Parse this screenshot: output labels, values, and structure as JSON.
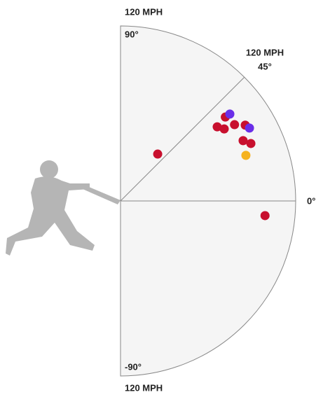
{
  "chart_data": {
    "type": "polar-scatter",
    "rlim": [
      0,
      120
    ],
    "angle_ticks": [
      {
        "value": 90,
        "label": "90°"
      },
      {
        "value": 45,
        "label": "45°"
      },
      {
        "value": 0,
        "label": "0°"
      },
      {
        "value": -90,
        "label": "-90°"
      }
    ],
    "speed_labels": [
      {
        "value": 120,
        "label": "120 MPH"
      },
      {
        "value": 120,
        "label": "120 MPH"
      },
      {
        "value": 120,
        "label": "120 MPH"
      }
    ],
    "points": [
      {
        "angle": 51.6,
        "speed": 41,
        "color": "#c8102e"
      },
      {
        "angle": 38.7,
        "speed": 92,
        "color": "#c8102e"
      },
      {
        "angle": 37.5,
        "speed": 83.5,
        "color": "#c8102e"
      },
      {
        "angle": 34.8,
        "speed": 86.5,
        "color": "#c8102e"
      },
      {
        "angle": 33.8,
        "speed": 94,
        "color": "#c8102e"
      },
      {
        "angle": 31.3,
        "speed": 100,
        "color": "#c8102e"
      },
      {
        "angle": 26.2,
        "speed": 93.6,
        "color": "#c8102e"
      },
      {
        "angle": 23.8,
        "speed": 97.6,
        "color": "#c8102e"
      },
      {
        "angle": -5.8,
        "speed": 99.5,
        "color": "#c8102e"
      },
      {
        "angle": 38.5,
        "speed": 95.7,
        "color": "#6a2ee8"
      },
      {
        "angle": 29.5,
        "speed": 101.5,
        "color": "#6a2ee8"
      },
      {
        "angle": 20,
        "speed": 91.4,
        "color": "#f5b21e"
      }
    ]
  }
}
